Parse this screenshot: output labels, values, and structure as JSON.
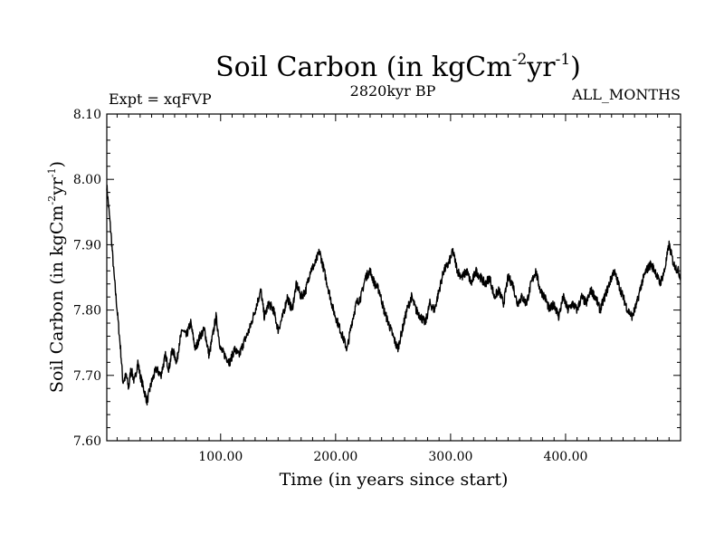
{
  "chart_data": {
    "type": "line",
    "title": "Soil Carbon (in kgCm",
    "title_sup1": "-2",
    "title_mid": "yr",
    "title_sup2": "-1",
    "title_end": ")",
    "expt_label": "Expt = xqFVP",
    "period_label": "2820kyr BP",
    "months_label": "ALL_MONTHS",
    "xlabel": "Time (in years since start)",
    "ylabel_main": "Soil Carbon (in kgCm",
    "ylabel_sup1": "-2",
    "ylabel_mid": "yr",
    "ylabel_sup2": "-1",
    "ylabel_end": ")",
    "xlim": [
      1,
      500
    ],
    "ylim": [
      7.6,
      8.1
    ],
    "xticks": [
      {
        "value": 100,
        "label": "100.00"
      },
      {
        "value": 200,
        "label": "200.00"
      },
      {
        "value": 300,
        "label": "300.00"
      },
      {
        "value": 400,
        "label": "400.00"
      }
    ],
    "yticks": [
      {
        "value": 7.6,
        "label": "7.60"
      },
      {
        "value": 7.7,
        "label": "7.70"
      },
      {
        "value": 7.8,
        "label": "7.80"
      },
      {
        "value": 7.9,
        "label": "7.90"
      },
      {
        "value": 8.0,
        "label": "8.00"
      },
      {
        "value": 8.1,
        "label": "8.10"
      }
    ],
    "line_color": "#000000",
    "series": [
      {
        "name": "Soil Carbon",
        "x": [
          1,
          3,
          5,
          7,
          10,
          13,
          15,
          18,
          20,
          22,
          25,
          28,
          30,
          33,
          36,
          40,
          44,
          48,
          52,
          55,
          58,
          62,
          64,
          67,
          70,
          74,
          78,
          82,
          86,
          90,
          93,
          96,
          100,
          104,
          108,
          112,
          116,
          120,
          125,
          130,
          135,
          138,
          142,
          146,
          150,
          154,
          158,
          162,
          166,
          170,
          174,
          178,
          182,
          186,
          190,
          194,
          198,
          202,
          206,
          210,
          214,
          218,
          222,
          226,
          230,
          234,
          238,
          242,
          246,
          250,
          254,
          258,
          262,
          266,
          270,
          274,
          278,
          282,
          286,
          290,
          294,
          298,
          302,
          306,
          310,
          314,
          318,
          322,
          326,
          330,
          334,
          338,
          342,
          346,
          350,
          354,
          358,
          362,
          366,
          370,
          374,
          378,
          382,
          386,
          390,
          394,
          398,
          402,
          406,
          410,
          414,
          418,
          422,
          426,
          430,
          434,
          438,
          442,
          446,
          450,
          454,
          458,
          462,
          466,
          470,
          474,
          478,
          482,
          486,
          490,
          494,
          498,
          500
        ],
        "y": [
          7.99,
          7.95,
          7.91,
          7.86,
          7.8,
          7.74,
          7.69,
          7.7,
          7.68,
          7.71,
          7.69,
          7.72,
          7.7,
          7.68,
          7.66,
          7.69,
          7.71,
          7.7,
          7.73,
          7.71,
          7.74,
          7.72,
          7.75,
          7.77,
          7.76,
          7.78,
          7.74,
          7.76,
          7.77,
          7.73,
          7.76,
          7.79,
          7.74,
          7.73,
          7.72,
          7.74,
          7.73,
          7.75,
          7.77,
          7.8,
          7.83,
          7.79,
          7.81,
          7.8,
          7.77,
          7.79,
          7.82,
          7.8,
          7.84,
          7.82,
          7.83,
          7.86,
          7.87,
          7.89,
          7.86,
          7.83,
          7.8,
          7.78,
          7.76,
          7.74,
          7.78,
          7.81,
          7.82,
          7.85,
          7.86,
          7.84,
          7.83,
          7.8,
          7.78,
          7.76,
          7.74,
          7.77,
          7.8,
          7.82,
          7.8,
          7.79,
          7.78,
          7.81,
          7.8,
          7.83,
          7.86,
          7.87,
          7.89,
          7.86,
          7.85,
          7.86,
          7.84,
          7.86,
          7.85,
          7.84,
          7.85,
          7.82,
          7.83,
          7.81,
          7.85,
          7.84,
          7.81,
          7.82,
          7.81,
          7.84,
          7.86,
          7.83,
          7.82,
          7.8,
          7.81,
          7.79,
          7.82,
          7.8,
          7.81,
          7.8,
          7.82,
          7.81,
          7.83,
          7.82,
          7.8,
          7.82,
          7.84,
          7.86,
          7.84,
          7.82,
          7.8,
          7.79,
          7.81,
          7.84,
          7.86,
          7.87,
          7.86,
          7.84,
          7.86,
          7.9,
          7.87,
          7.86,
          7.85
        ]
      }
    ]
  }
}
